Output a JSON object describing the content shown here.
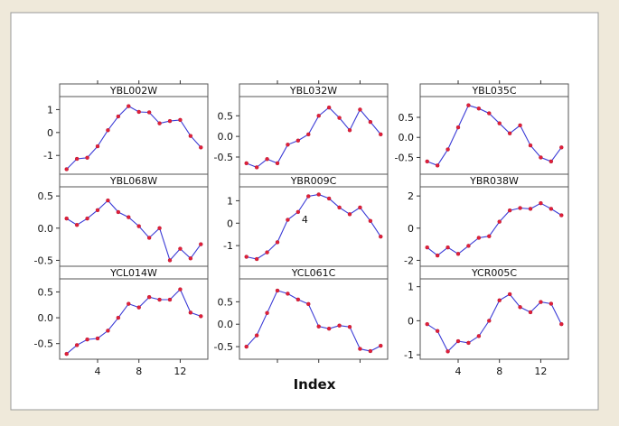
{
  "colors": {
    "line": "#3b3bd6",
    "point": "#e0203a",
    "background": "#efe9da"
  },
  "chart_data": {
    "type": "line",
    "xlabel": "Index",
    "x_ticks": [
      4,
      8,
      12
    ],
    "xlim": [
      0.5,
      14.5
    ],
    "grid": false,
    "layout": "3x3 panels",
    "panels": [
      {
        "name": "YBL002W",
        "y_ticks": [
          -1,
          0,
          1
        ],
        "ylim": [
          -1.7,
          1.45
        ],
        "x": [
          1,
          2,
          3,
          4,
          5,
          6,
          7,
          8,
          9,
          10,
          11,
          12,
          13,
          14
        ],
        "values": [
          -1.6,
          -1.15,
          -1.1,
          -0.6,
          0.1,
          0.7,
          1.15,
          0.9,
          0.88,
          0.4,
          0.5,
          0.55,
          -0.15,
          -0.65
        ]
      },
      {
        "name": "YBL032W",
        "y_ticks": [
          -0.5,
          0.0,
          0.5
        ],
        "ylim": [
          -0.85,
          0.9
        ],
        "x": [
          1,
          2,
          3,
          4,
          5,
          6,
          7,
          8,
          9,
          10,
          11,
          12,
          13,
          14
        ],
        "values": [
          -0.65,
          -0.75,
          -0.55,
          -0.65,
          -0.2,
          -0.1,
          0.05,
          0.5,
          0.7,
          0.45,
          0.15,
          0.65,
          0.35,
          0.05
        ]
      },
      {
        "name": "YBL035C",
        "y_ticks": [
          -0.5,
          0.0,
          0.5
        ],
        "ylim": [
          -0.85,
          0.95
        ],
        "x": [
          1,
          2,
          3,
          4,
          5,
          6,
          7,
          8,
          9,
          10,
          11,
          12,
          13,
          14
        ],
        "values": [
          -0.6,
          -0.7,
          -0.3,
          0.25,
          0.8,
          0.72,
          0.6,
          0.35,
          0.1,
          0.3,
          -0.2,
          -0.5,
          -0.6,
          -0.25
        ]
      },
      {
        "name": "YBL068W",
        "y_ticks": [
          -0.5,
          0.0,
          0.5
        ],
        "ylim": [
          -0.55,
          0.6
        ],
        "x": [
          1,
          2,
          3,
          4,
          5,
          6,
          7,
          8,
          9,
          10,
          11,
          12,
          13,
          14
        ],
        "values": [
          0.15,
          0.05,
          0.15,
          0.28,
          0.43,
          0.25,
          0.17,
          0.03,
          -0.15,
          0.0,
          -0.5,
          -0.32,
          -0.47,
          -0.25
        ]
      },
      {
        "name": "YBR009C",
        "y_ticks": [
          -1,
          0,
          1
        ],
        "ylim": [
          -1.8,
          1.5
        ],
        "x": [
          1,
          2,
          3,
          4,
          5,
          6,
          7,
          8,
          9,
          10,
          11,
          12,
          13,
          14
        ],
        "values": [
          -1.5,
          -1.6,
          -1.3,
          -0.85,
          0.15,
          0.5,
          1.2,
          1.28,
          1.1,
          0.7,
          0.4,
          0.7,
          0.1,
          -0.6
        ],
        "annotation": {
          "text": "4",
          "x": 6,
          "y": 0.5
        }
      },
      {
        "name": "YBR038W",
        "y_ticks": [
          -2,
          0,
          2
        ],
        "ylim": [
          -2.2,
          2.4
        ],
        "x": [
          1,
          2,
          3,
          4,
          5,
          6,
          7,
          8,
          9,
          10,
          11,
          12,
          13,
          14
        ],
        "values": [
          -1.2,
          -1.7,
          -1.2,
          -1.6,
          -1.1,
          -0.6,
          -0.5,
          0.4,
          1.1,
          1.25,
          1.2,
          1.55,
          1.2,
          0.8
        ]
      },
      {
        "name": "YCL014W",
        "y_ticks": [
          -0.5,
          0.0,
          0.5
        ],
        "ylim": [
          -0.75,
          0.7
        ],
        "x": [
          1,
          2,
          3,
          4,
          5,
          6,
          7,
          8,
          9,
          10,
          11,
          12,
          13,
          14
        ],
        "values": [
          -0.7,
          -0.53,
          -0.42,
          -0.4,
          -0.25,
          0.0,
          0.27,
          0.2,
          0.4,
          0.35,
          0.35,
          0.55,
          0.1,
          0.03
        ]
      },
      {
        "name": "YCL061C",
        "y_ticks": [
          -0.5,
          0.0,
          0.5
        ],
        "ylim": [
          -0.72,
          0.95
        ],
        "x": [
          1,
          2,
          3,
          4,
          5,
          6,
          7,
          8,
          9,
          10,
          11,
          12,
          13,
          14
        ],
        "values": [
          -0.5,
          -0.25,
          0.25,
          0.75,
          0.68,
          0.55,
          0.45,
          -0.05,
          -0.1,
          -0.03,
          -0.06,
          -0.55,
          -0.6,
          -0.48
        ]
      },
      {
        "name": "YCR005C",
        "y_ticks": [
          -1,
          0,
          1
        ],
        "ylim": [
          -1.05,
          1.15
        ],
        "x": [
          1,
          2,
          3,
          4,
          5,
          6,
          7,
          8,
          9,
          10,
          11,
          12,
          13,
          14
        ],
        "values": [
          -0.1,
          -0.3,
          -0.9,
          -0.6,
          -0.65,
          -0.45,
          0.0,
          0.6,
          0.78,
          0.4,
          0.25,
          0.55,
          0.5,
          -0.1
        ]
      }
    ]
  }
}
